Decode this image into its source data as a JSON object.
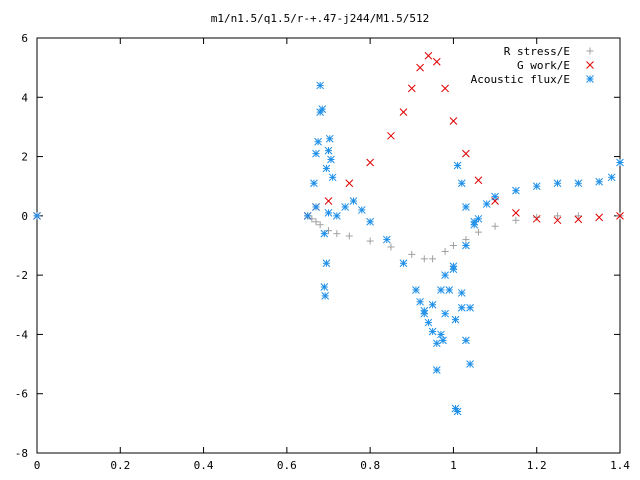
{
  "chart_data": {
    "type": "scatter",
    "title": "m1/n1.5/q1.5/r-+.47-j244/M1.5/512",
    "xlabel": "",
    "ylabel": "",
    "xlim": [
      0,
      1.4
    ],
    "ylim": [
      -8,
      6
    ],
    "x_ticks": [
      "0",
      "0.2",
      "0.4",
      "0.6",
      "0.8",
      "1",
      "1.2",
      "1.4"
    ],
    "y_ticks": [
      "-8",
      "-6",
      "-4",
      "-2",
      "0",
      "2",
      "4",
      "6"
    ],
    "grid": false,
    "legend_position": "top-right",
    "series": [
      {
        "name": "R stress/E",
        "marker": "+",
        "color": "#a0a0a0",
        "points": [
          [
            0.0,
            0
          ],
          [
            0.65,
            0
          ],
          [
            0.66,
            -0.1
          ],
          [
            0.67,
            -0.2
          ],
          [
            0.68,
            -0.3
          ],
          [
            0.7,
            -0.5
          ],
          [
            0.72,
            -0.6
          ],
          [
            0.75,
            -0.68
          ],
          [
            0.8,
            -0.85
          ],
          [
            0.85,
            -1.05
          ],
          [
            0.9,
            -1.3
          ],
          [
            0.93,
            -1.45
          ],
          [
            0.95,
            -1.45
          ],
          [
            0.98,
            -1.2
          ],
          [
            1.0,
            -1.0
          ],
          [
            1.03,
            -0.8
          ],
          [
            1.06,
            -0.55
          ],
          [
            1.1,
            -0.35
          ],
          [
            1.15,
            -0.15
          ],
          [
            1.2,
            -0.05
          ],
          [
            1.25,
            0
          ],
          [
            1.3,
            0
          ],
          [
            1.4,
            0
          ]
        ]
      },
      {
        "name": "G work/E",
        "marker": "x",
        "color": "#e00000",
        "points": [
          [
            0.0,
            0
          ],
          [
            0.65,
            0
          ],
          [
            0.67,
            0.3
          ],
          [
            0.7,
            0.5
          ],
          [
            0.75,
            1.1
          ],
          [
            0.8,
            1.8
          ],
          [
            0.85,
            2.7
          ],
          [
            0.88,
            3.5
          ],
          [
            0.9,
            4.3
          ],
          [
            0.92,
            5.0
          ],
          [
            0.94,
            5.4
          ],
          [
            0.96,
            5.2
          ],
          [
            0.98,
            4.3
          ],
          [
            1.0,
            3.2
          ],
          [
            1.03,
            2.1
          ],
          [
            1.06,
            1.2
          ],
          [
            1.1,
            0.5
          ],
          [
            1.15,
            0.1
          ],
          [
            1.2,
            -0.1
          ],
          [
            1.25,
            -0.15
          ],
          [
            1.3,
            -0.12
          ],
          [
            1.35,
            -0.05
          ],
          [
            1.4,
            0
          ]
        ]
      },
      {
        "name": "Acoustic flux/E",
        "marker": "*",
        "color": "#1e8fe8",
        "points": [
          [
            0.0,
            0
          ],
          [
            0.65,
            0
          ],
          [
            0.67,
            0.3
          ],
          [
            0.7,
            0.1
          ],
          [
            0.72,
            0
          ],
          [
            0.74,
            0.3
          ],
          [
            0.76,
            0.5
          ],
          [
            0.78,
            0.2
          ],
          [
            0.8,
            -0.2
          ],
          [
            0.84,
            -0.8
          ],
          [
            0.88,
            -1.6
          ],
          [
            0.91,
            -2.5
          ],
          [
            0.93,
            -3.2
          ],
          [
            0.95,
            -3.0
          ],
          [
            0.97,
            -2.5
          ],
          [
            1.0,
            -1.8
          ],
          [
            1.03,
            -1.0
          ],
          [
            1.05,
            -0.3
          ],
          [
            1.08,
            0.4
          ],
          [
            1.1,
            0.65
          ],
          [
            1.15,
            0.85
          ],
          [
            1.2,
            1.0
          ],
          [
            1.25,
            1.1
          ],
          [
            1.3,
            1.1
          ],
          [
            1.35,
            1.15
          ],
          [
            1.38,
            1.3
          ],
          [
            1.4,
            1.8
          ],
          [
            0.665,
            1.1
          ],
          [
            0.67,
            2.1
          ],
          [
            0.675,
            2.5
          ],
          [
            0.68,
            3.5
          ],
          [
            0.68,
            4.4
          ],
          [
            0.685,
            3.6
          ],
          [
            0.69,
            -0.6
          ],
          [
            0.69,
            -2.4
          ],
          [
            0.692,
            -2.7
          ],
          [
            0.695,
            -1.6
          ],
          [
            0.695,
            1.6
          ],
          [
            0.7,
            2.2
          ],
          [
            0.703,
            2.6
          ],
          [
            0.706,
            1.9
          ],
          [
            0.71,
            1.3
          ],
          [
            0.92,
            -2.9
          ],
          [
            0.93,
            -3.3
          ],
          [
            0.94,
            -3.6
          ],
          [
            0.95,
            -3.9
          ],
          [
            0.96,
            -4.3
          ],
          [
            0.97,
            -4.0
          ],
          [
            0.98,
            -2.0
          ],
          [
            0.98,
            -3.3
          ],
          [
            0.99,
            -2.5
          ],
          [
            1.0,
            -1.7
          ],
          [
            1.005,
            -6.5
          ],
          [
            1.01,
            -6.6
          ],
          [
            1.01,
            1.7
          ],
          [
            1.02,
            -2.6
          ],
          [
            1.02,
            -3.1
          ],
          [
            1.03,
            -4.2
          ],
          [
            1.04,
            -5.0
          ],
          [
            1.04,
            -3.1
          ],
          [
            0.96,
            -5.2
          ],
          [
            0.975,
            -4.2
          ],
          [
            1.005,
            -3.5
          ],
          [
            1.05,
            -0.2
          ],
          [
            1.06,
            -0.1
          ],
          [
            1.02,
            1.1
          ],
          [
            1.03,
            0.3
          ]
        ]
      }
    ]
  }
}
